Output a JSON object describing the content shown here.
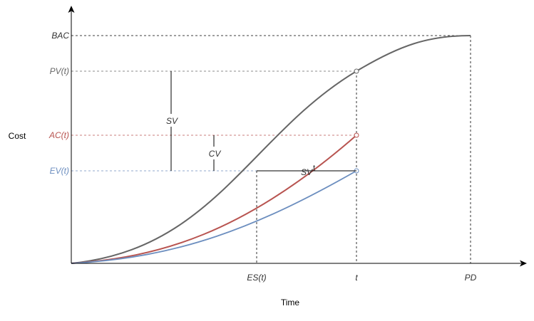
{
  "axes": {
    "y_title": "Cost",
    "x_title": "Time"
  },
  "y_labels": {
    "bac": "BAC",
    "pv": "PV(t)",
    "ac": "AC(t)",
    "ev": "EV(t)"
  },
  "x_labels": {
    "es": "ES(t)",
    "t": "t",
    "pd": "PD"
  },
  "annotations": {
    "sv_cost": "SV",
    "cv": "CV",
    "sv_time": "SV"
  },
  "colors": {
    "pv_curve": "#666666",
    "ac_curve": "#b85450",
    "ev_curve": "#6c8ebf",
    "axis": "#000000"
  }
}
